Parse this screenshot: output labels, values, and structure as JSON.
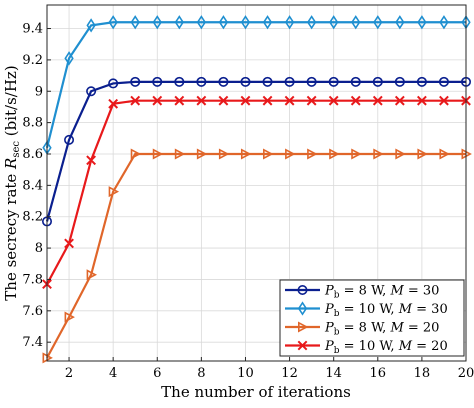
{
  "chart_data": {
    "type": "line",
    "xlabel": "The number of iterations",
    "ylabel": "The secrecy rate",
    "ylabel_symbol": "R",
    "ylabel_subscript": "sec",
    "ylabel_unit": "(bit/s/Hz)",
    "xlim": [
      1,
      20
    ],
    "ylim": [
      7.28,
      9.55
    ],
    "xticks": [
      2,
      4,
      6,
      8,
      10,
      12,
      14,
      16,
      18,
      20
    ],
    "yticks": [
      7.4,
      7.6,
      7.8,
      8,
      8.2,
      8.4,
      8.6,
      8.8,
      9,
      9.2,
      9.4
    ],
    "ytick_labels": [
      "7.4",
      "7.6",
      "7.8",
      "8",
      "8.2",
      "8.4",
      "8.6",
      "8.8",
      "9",
      "9.2",
      "9.4"
    ],
    "grid": true,
    "legend_position": "bottom-right",
    "x": [
      1,
      2,
      3,
      4,
      5,
      6,
      7,
      8,
      9,
      10,
      11,
      12,
      13,
      14,
      15,
      16,
      17,
      18,
      19,
      20
    ],
    "series": [
      {
        "name": "P_b = 8 W, M = 30",
        "label_parts": {
          "sym": "P",
          "sub": "b",
          "rest": " = 8 W, ",
          "sym2": "M",
          "rest2": " = 30"
        },
        "color": "#0a1f8f",
        "marker": "circle",
        "values": [
          8.17,
          8.69,
          9.0,
          9.05,
          9.06,
          9.06,
          9.06,
          9.06,
          9.06,
          9.06,
          9.06,
          9.06,
          9.06,
          9.06,
          9.06,
          9.06,
          9.06,
          9.06,
          9.06,
          9.06
        ]
      },
      {
        "name": "P_b = 10 W, M = 30",
        "label_parts": {
          "sym": "P",
          "sub": "b",
          "rest": " = 10 W, ",
          "sym2": "M",
          "rest2": " = 30"
        },
        "color": "#1f8fd0",
        "marker": "diamond",
        "values": [
          8.64,
          9.21,
          9.42,
          9.44,
          9.44,
          9.44,
          9.44,
          9.44,
          9.44,
          9.44,
          9.44,
          9.44,
          9.44,
          9.44,
          9.44,
          9.44,
          9.44,
          9.44,
          9.44,
          9.44
        ]
      },
      {
        "name": "P_b = 8 W, M = 20",
        "label_parts": {
          "sym": "P",
          "sub": "b",
          "rest": " = 8 W, ",
          "sym2": "M",
          "rest2": " = 20"
        },
        "color": "#e0662a",
        "marker": "triangle-right",
        "values": [
          7.3,
          7.56,
          7.83,
          8.36,
          8.6,
          8.6,
          8.6,
          8.6,
          8.6,
          8.6,
          8.6,
          8.6,
          8.6,
          8.6,
          8.6,
          8.6,
          8.6,
          8.6,
          8.6,
          8.6
        ]
      },
      {
        "name": "P_b = 10 W, M = 20",
        "label_parts": {
          "sym": "P",
          "sub": "b",
          "rest": " = 10 W, ",
          "sym2": "M",
          "rest2": " = 20"
        },
        "color": "#e8191b",
        "marker": "x",
        "values": [
          7.77,
          8.03,
          8.56,
          8.92,
          8.94,
          8.94,
          8.94,
          8.94,
          8.94,
          8.94,
          8.94,
          8.94,
          8.94,
          8.94,
          8.94,
          8.94,
          8.94,
          8.94,
          8.94,
          8.94
        ]
      }
    ]
  }
}
